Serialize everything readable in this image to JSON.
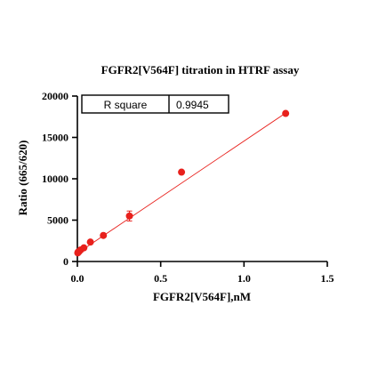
{
  "chart_data": {
    "type": "scatter",
    "title": "FGFR2[V564F] titration in HTRF assay",
    "xlabel": "FGFR2[V564F],nM",
    "ylabel": "Ratio (665/620)",
    "xlim": [
      0,
      1.5
    ],
    "ylim": [
      0,
      20000
    ],
    "x_ticks": [
      "0.0",
      "0.5",
      "1.0",
      "1.5"
    ],
    "y_ticks": [
      "0",
      "5000",
      "10000",
      "15000",
      "20000"
    ],
    "x_tick_values": [
      0,
      0.5,
      1.0,
      1.5
    ],
    "y_tick_values": [
      0,
      5000,
      10000,
      15000,
      20000
    ],
    "grid": false,
    "point_color": "#e8201c",
    "fit_color": "#e8201c",
    "series": [
      {
        "points": [
          {
            "x": 0.0024,
            "y": 1050,
            "err": 100
          },
          {
            "x": 0.0049,
            "y": 1150,
            "err": 100
          },
          {
            "x": 0.0098,
            "y": 1200,
            "err": 100
          },
          {
            "x": 0.0195,
            "y": 1400,
            "err": 150
          },
          {
            "x": 0.039,
            "y": 1650,
            "err": 150
          },
          {
            "x": 0.078,
            "y": 2350,
            "err": 150
          },
          {
            "x": 0.156,
            "y": 3150,
            "err": 150
          },
          {
            "x": 0.3125,
            "y": 5500,
            "err": 600
          },
          {
            "x": 0.625,
            "y": 10800,
            "err": 150
          },
          {
            "x": 1.25,
            "y": 17900,
            "err": 150
          }
        ],
        "fit": {
          "x": [
            0,
            1.25
          ],
          "y": [
            1000,
            17950
          ]
        }
      }
    ],
    "stats_table": {
      "label": "R square",
      "value": "0.9945"
    }
  }
}
